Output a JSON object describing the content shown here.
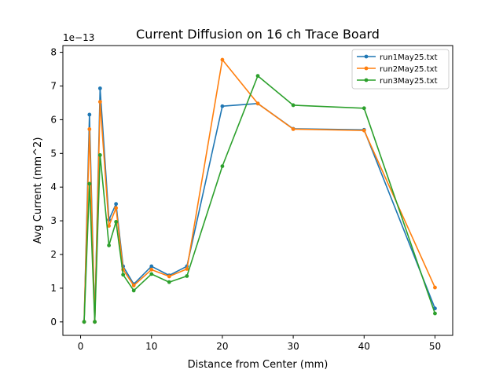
{
  "chart_data": {
    "type": "line",
    "title": "Current Diffusion on 16 ch Trace Board",
    "xlabel": "Distance from Center (mm)",
    "ylabel": "Avg Current (mm^2)",
    "y_offset_text": "1e−13",
    "xlim": [
      -2.5,
      52.5
    ],
    "ylim": [
      -0.4,
      8.2
    ],
    "y_scale_factor": "1e-13",
    "xticks": [
      0,
      10,
      20,
      30,
      40,
      50
    ],
    "xtick_labels": [
      "0",
      "10",
      "20",
      "30",
      "40",
      "50"
    ],
    "yticks": [
      0,
      1,
      2,
      3,
      4,
      5,
      6,
      7,
      8
    ],
    "ytick_labels": [
      "0",
      "1",
      "2",
      "3",
      "4",
      "5",
      "6",
      "7",
      "8"
    ],
    "grid": false,
    "legend_position": "top-right",
    "series": [
      {
        "name": "run1May25.txt",
        "color": "#1f77b4",
        "x": [
          0.5,
          1.25,
          2.0,
          2.75,
          4.0,
          5.0,
          6.0,
          7.5,
          10.0,
          12.5,
          15.0,
          20.0,
          25.0,
          30.0,
          40.0,
          50.0
        ],
        "y": [
          0.0,
          6.15,
          0.0,
          6.93,
          3.03,
          3.5,
          1.65,
          1.12,
          1.65,
          1.38,
          1.65,
          6.4,
          6.48,
          5.73,
          5.7,
          0.4
        ]
      },
      {
        "name": "run2May25.txt",
        "color": "#ff7f0e",
        "x": [
          0.5,
          1.25,
          2.0,
          2.75,
          4.0,
          5.0,
          6.0,
          7.5,
          10.0,
          12.5,
          15.0,
          20.0,
          25.0,
          30.0,
          40.0,
          50.0
        ],
        "y": [
          0.0,
          5.72,
          0.0,
          6.53,
          2.85,
          3.38,
          1.55,
          1.08,
          1.55,
          1.35,
          1.57,
          7.78,
          6.48,
          5.72,
          5.68,
          1.02
        ]
      },
      {
        "name": "run3May25.txt",
        "color": "#2ca02c",
        "x": [
          0.5,
          1.25,
          2.0,
          2.75,
          4.0,
          5.0,
          6.0,
          7.5,
          10.0,
          12.5,
          15.0,
          20.0,
          25.0,
          30.0,
          40.0,
          50.0
        ],
        "y": [
          0.0,
          4.1,
          0.0,
          4.95,
          2.27,
          2.97,
          1.4,
          0.93,
          1.42,
          1.18,
          1.36,
          4.62,
          7.3,
          6.43,
          6.34,
          0.25
        ]
      }
    ]
  }
}
